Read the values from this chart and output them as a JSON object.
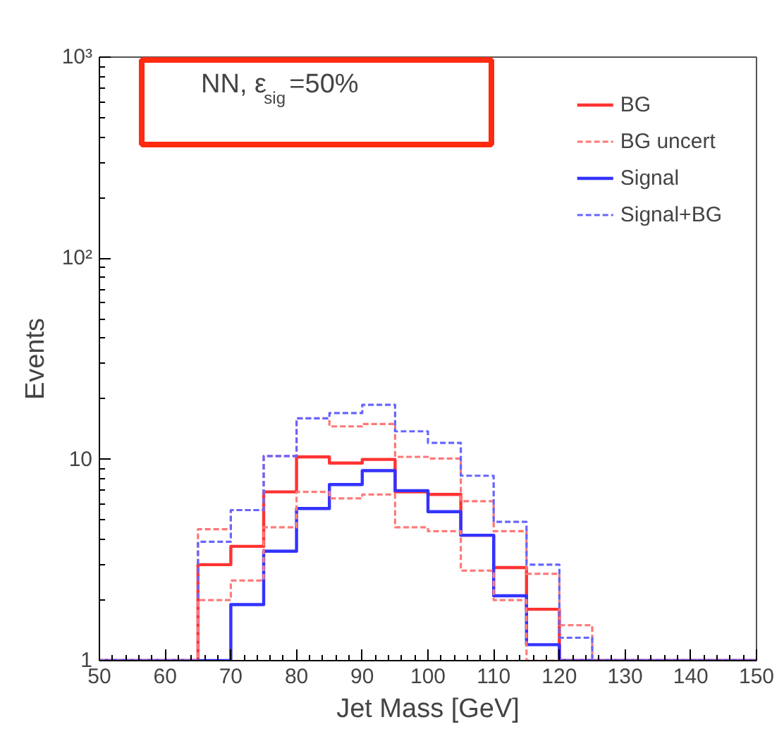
{
  "chart_data": {
    "type": "histogram",
    "xlabel": "Jet Mass [GeV]",
    "ylabel": "Events",
    "annotations": [
      "NN, ε$_{sig}$=50%"
    ],
    "bins": [
      50,
      55,
      60,
      65,
      70,
      75,
      80,
      85,
      90,
      95,
      100,
      105,
      110,
      115,
      120,
      125,
      130,
      135,
      140,
      145,
      150
    ],
    "series": [
      {
        "name": "BG",
        "color": "#ff3333",
        "line_style": "solid",
        "values": [
          1,
          1,
          1,
          3.0,
          3.7,
          6.9,
          10.3,
          9.6,
          10.0,
          6.9,
          6.7,
          4.2,
          2.9,
          1.8,
          1,
          1,
          1,
          1,
          1,
          1
        ]
      },
      {
        "name": "BG uncert",
        "color": "#ff7777",
        "line_style": "dashed",
        "values": [
          1,
          1,
          1,
          4.5,
          5.6,
          10.4,
          16.0,
          14.6,
          15.0,
          10.3,
          10.1,
          6.2,
          4.4,
          2.7,
          1.5,
          1,
          1,
          1,
          1,
          1
        ]
      },
      {
        "name": "Signal",
        "color": "#3333ff",
        "line_style": "solid",
        "values": [
          1,
          1,
          1,
          1,
          1.9,
          3.5,
          5.7,
          7.5,
          8.8,
          7.0,
          5.5,
          4.2,
          2.1,
          1.2,
          1,
          1,
          1,
          1,
          1,
          1
        ]
      },
      {
        "name": "Signal+BG",
        "color": "#6666ff",
        "line_style": "dashed",
        "values": [
          1,
          1,
          1,
          3.9,
          5.6,
          10.4,
          16.0,
          17.0,
          18.7,
          13.8,
          12.1,
          8.3,
          4.9,
          3.0,
          1.3,
          1,
          1,
          1,
          1,
          1
        ]
      },
      {
        "color": "#ff7b7b",
        "line_style": "dashed",
        "values": [
          1,
          1,
          1,
          2.0,
          2.5,
          4.6,
          6.9,
          6.4,
          6.7,
          4.6,
          4.4,
          2.8,
          2.0,
          1,
          1,
          1,
          1,
          1,
          1,
          1
        ]
      }
    ],
    "xlim": [
      50,
      150
    ],
    "xticks": [
      50,
      60,
      70,
      80,
      90,
      100,
      110,
      120,
      130,
      140,
      150
    ],
    "ylim": [
      1,
      1000
    ],
    "yticks": [
      1,
      10,
      {
        "value": 100,
        "label": "10²"
      },
      {
        "value": 1000,
        "label": "10³"
      }
    ],
    "log": "y",
    "grid": false,
    "legend": "top right"
  }
}
